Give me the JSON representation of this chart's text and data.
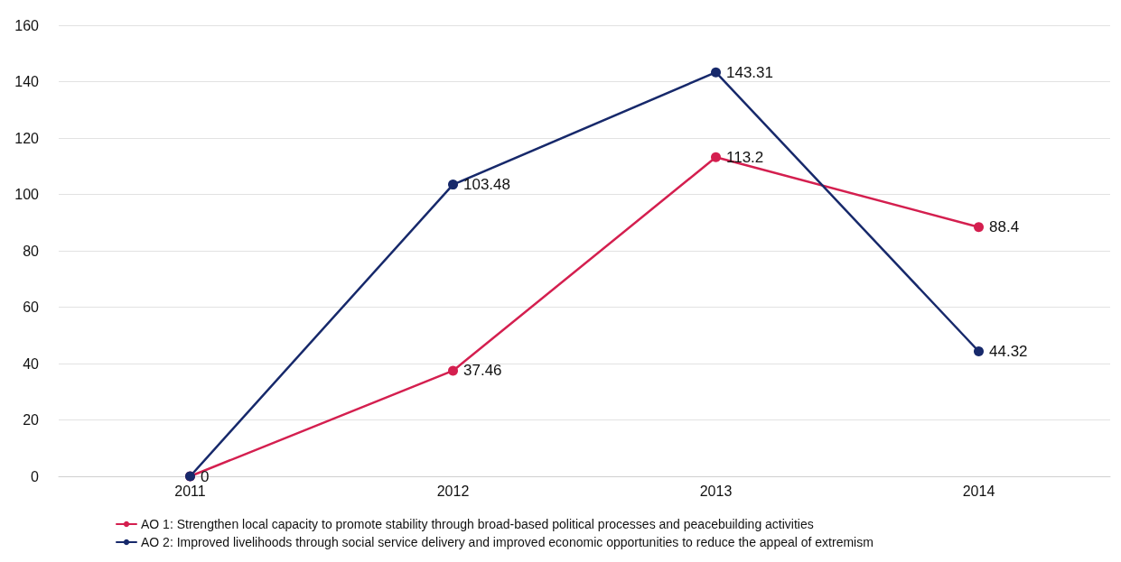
{
  "chart_data": {
    "type": "line",
    "categories": [
      "2011",
      "2012",
      "2013",
      "2014"
    ],
    "series": [
      {
        "name": "AO 1: Strengthen local capacity to promote stability through broad-based political processes and peacebuilding activities",
        "color": "#d41f4f",
        "values": [
          0,
          37.46,
          113.2,
          88.4
        ],
        "value_labels": [
          "0",
          "37.46",
          "113.2",
          "88.4"
        ]
      },
      {
        "name": "AO 2: Improved livelihoods through social service delivery and improved economic opportunities to reduce the appeal of extremism",
        "color": "#17296b",
        "values": [
          0,
          103.48,
          143.31,
          44.32
        ],
        "value_labels": [
          null,
          "103.48",
          "143.31",
          "44.32"
        ]
      }
    ],
    "ylim": [
      0,
      160
    ],
    "yticks": [
      0,
      20,
      40,
      60,
      80,
      100,
      120,
      140,
      160
    ],
    "grid": "y",
    "legend": "bottom",
    "marker": "circle",
    "line_style": "solid"
  }
}
